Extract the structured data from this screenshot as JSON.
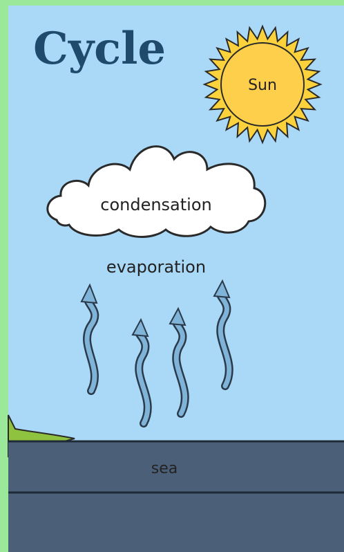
{
  "title": "Cycle",
  "labels": {
    "sun": "Sun",
    "cloud": "condensation",
    "evaporation": "evaporation",
    "sea": "sea"
  }
}
